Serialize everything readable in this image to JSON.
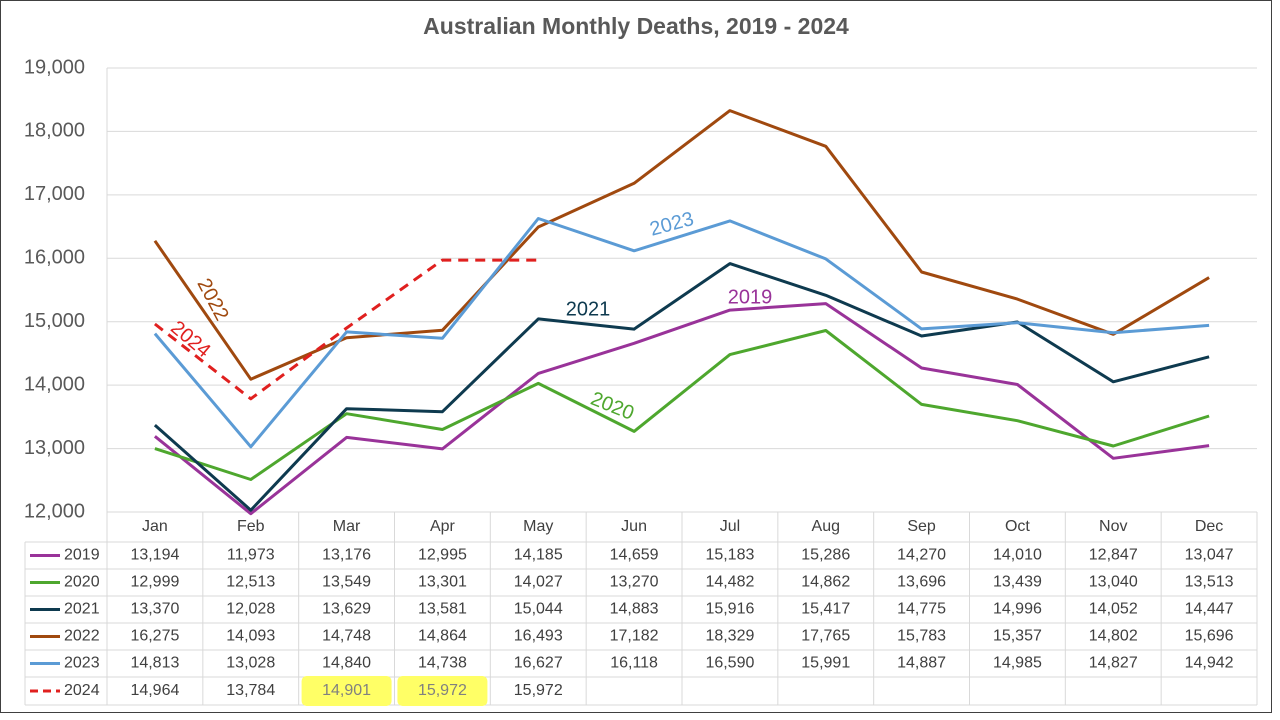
{
  "chart_data": {
    "type": "line",
    "title": "Australian Monthly Deaths, 2019 - 2024",
    "categories": [
      "Jan",
      "Feb",
      "Mar",
      "Apr",
      "May",
      "Jun",
      "Jul",
      "Aug",
      "Sep",
      "Oct",
      "Nov",
      "Dec"
    ],
    "ylim": [
      12000,
      19000
    ],
    "yticks": [
      {
        "value": 12000,
        "label": "12,000"
      },
      {
        "value": 13000,
        "label": "13,000"
      },
      {
        "value": 14000,
        "label": "14,000"
      },
      {
        "value": 15000,
        "label": "15,000"
      },
      {
        "value": 16000,
        "label": "16,000"
      },
      {
        "value": 17000,
        "label": "17,000"
      },
      {
        "value": 18000,
        "label": "18,000"
      },
      {
        "value": 19000,
        "label": "19,000"
      }
    ],
    "grid": true,
    "series": [
      {
        "name": "2019",
        "color": "#993399",
        "values": [
          13194,
          11973,
          13176,
          12995,
          14185,
          14659,
          15183,
          15286,
          14270,
          14010,
          12847,
          13047
        ],
        "value_labels": [
          "13,194",
          "11,973",
          "13,176",
          "12,995",
          "14,185",
          "14,659",
          "15,183",
          "15,286",
          "14,270",
          "14,010",
          "12,847",
          "13,047"
        ]
      },
      {
        "name": "2020",
        "color": "#4ea72e",
        "values": [
          12999,
          12513,
          13549,
          13301,
          14027,
          13270,
          14482,
          14862,
          13696,
          13439,
          13040,
          13513
        ],
        "value_labels": [
          "12,999",
          "12,513",
          "13,549",
          "13,301",
          "14,027",
          "13,270",
          "14,482",
          "14,862",
          "13,696",
          "13,439",
          "13,040",
          "13,513"
        ]
      },
      {
        "name": "2021",
        "color": "#0e3a4f",
        "values": [
          13370,
          12028,
          13629,
          13581,
          15044,
          14883,
          15916,
          15417,
          14775,
          14996,
          14052,
          14447
        ],
        "value_labels": [
          "13,370",
          "12,028",
          "13,629",
          "13,581",
          "15,044",
          "14,883",
          "15,916",
          "15,417",
          "14,775",
          "14,996",
          "14,052",
          "14,447"
        ]
      },
      {
        "name": "2022",
        "color": "#a0490f",
        "values": [
          16275,
          14093,
          14748,
          14864,
          16493,
          17182,
          18329,
          17765,
          15783,
          15357,
          14802,
          15696
        ],
        "value_labels": [
          "16,275",
          "14,093",
          "14,748",
          "14,864",
          "16,493",
          "17,182",
          "18,329",
          "17,765",
          "15,783",
          "15,357",
          "14,802",
          "15,696"
        ]
      },
      {
        "name": "2023",
        "color": "#5b9bd5",
        "values": [
          14813,
          13028,
          14840,
          14738,
          16627,
          16118,
          16590,
          15991,
          14887,
          14985,
          14827,
          14942
        ],
        "value_labels": [
          "14,813",
          "13,028",
          "14,840",
          "14,738",
          "16,627",
          "16,118",
          "16,590",
          "15,991",
          "14,887",
          "14,985",
          "14,827",
          "14,942"
        ]
      },
      {
        "name": "2024",
        "color": "#e0201f",
        "dashed": true,
        "values": [
          14964,
          13784,
          14901,
          15972,
          15972,
          null,
          null,
          null,
          null,
          null,
          null,
          null
        ],
        "value_labels": [
          "14,964",
          "13,784",
          "14,901",
          "15,972",
          "15,972",
          null,
          null,
          null,
          null,
          null,
          null,
          null
        ]
      }
    ]
  }
}
